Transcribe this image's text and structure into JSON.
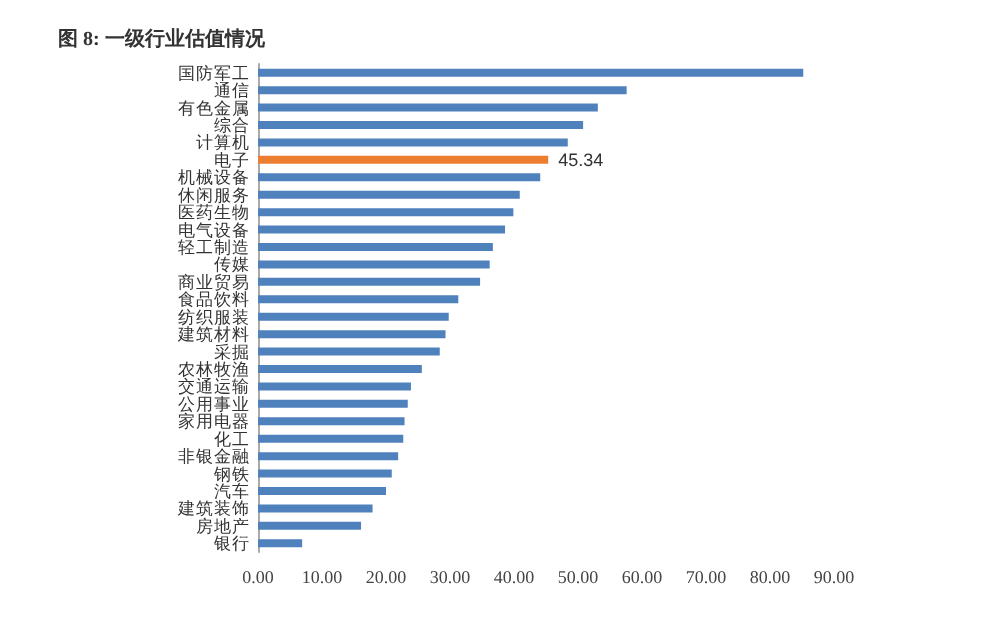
{
  "chart_data": {
    "type": "bar",
    "orientation": "horizontal",
    "title": "图 8: 一级行业估值情况",
    "categories": [
      "国防军工",
      "通信",
      "有色金属",
      "综合",
      "计算机",
      "电子",
      "机械设备",
      "休闲服务",
      "医药生物",
      "电气设备",
      "轻工制造",
      "传媒",
      "商业贸易",
      "食品饮料",
      "纺织服装",
      "建筑材料",
      "采掘",
      "农林牧渔",
      "交通运输",
      "公用事业",
      "家用电器",
      "化工",
      "非银金融",
      "钢铁",
      "汽车",
      "建筑装饰",
      "房地产",
      "银行"
    ],
    "values": [
      85.2,
      57.6,
      53.1,
      50.8,
      48.4,
      45.34,
      44.1,
      40.9,
      39.9,
      38.6,
      36.7,
      36.2,
      34.7,
      31.3,
      29.8,
      29.3,
      28.4,
      25.6,
      23.9,
      23.4,
      22.9,
      22.7,
      21.9,
      20.9,
      20.0,
      17.9,
      16.1,
      6.9
    ],
    "colors": [
      "#4f81bd",
      "#4f81bd",
      "#4f81bd",
      "#4f81bd",
      "#4f81bd",
      "#ed7d31",
      "#4f81bd",
      "#4f81bd",
      "#4f81bd",
      "#4f81bd",
      "#4f81bd",
      "#4f81bd",
      "#4f81bd",
      "#4f81bd",
      "#4f81bd",
      "#4f81bd",
      "#4f81bd",
      "#4f81bd",
      "#4f81bd",
      "#4f81bd",
      "#4f81bd",
      "#4f81bd",
      "#4f81bd",
      "#4f81bd",
      "#4f81bd",
      "#4f81bd",
      "#4f81bd",
      "#4f81bd"
    ],
    "value_labels": [
      null,
      null,
      null,
      null,
      null,
      "45.34",
      null,
      null,
      null,
      null,
      null,
      null,
      null,
      null,
      null,
      null,
      null,
      null,
      null,
      null,
      null,
      null,
      null,
      null,
      null,
      null,
      null,
      null
    ],
    "xlim": [
      0,
      90
    ],
    "xticks": [
      {
        "value": 0,
        "label": "0.00"
      },
      {
        "value": 10,
        "label": "10.00"
      },
      {
        "value": 20,
        "label": "20.00"
      },
      {
        "value": 30,
        "label": "30.00"
      },
      {
        "value": 40,
        "label": "40.00"
      },
      {
        "value": 50,
        "label": "50.00"
      },
      {
        "value": 60,
        "label": "60.00"
      },
      {
        "value": 70,
        "label": "70.00"
      },
      {
        "value": 80,
        "label": "80.00"
      },
      {
        "value": 90,
        "label": "90.00"
      }
    ],
    "grid": false
  }
}
